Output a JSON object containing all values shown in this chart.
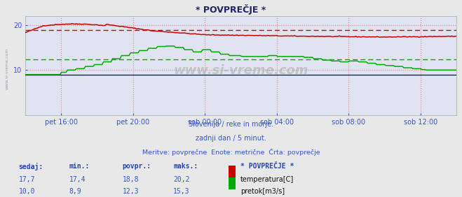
{
  "title": "* POVPREČJE *",
  "subtitle1": "Slovenija / reke in morje.",
  "subtitle2": "zadnji dan / 5 minut.",
  "subtitle3": "Meritve: povprečne  Enote: metrične  Črta: povprečje",
  "xtick_labels": [
    "pet 16:00",
    "pet 20:00",
    "sob 00:00",
    "sob 04:00",
    "sob 08:00",
    "sob 12:00"
  ],
  "xtick_hours": [
    2,
    6,
    10,
    14,
    18,
    22
  ],
  "ylim": [
    0,
    22
  ],
  "yticks": [
    10,
    20
  ],
  "temp_avg": 18.8,
  "flow_avg": 12.3,
  "fig_bg": "#e8e8e8",
  "plot_bg": "#e0e4f0",
  "vgrid_color": "#dd8888",
  "hgrid_color": "#dd8888",
  "temp_color": "#cc0000",
  "flow_color": "#00aa00",
  "height_color": "#0000bb",
  "temp_avg_color": "#cc0000",
  "flow_avg_color": "#00aa00",
  "header_color": "#2244bb",
  "value_color": "#3355cc",
  "sedaj_label": "sedaj:",
  "min_label": "min.:",
  "povpr_label": "povpr.:",
  "maks_label": "maks.:",
  "legend_title": "* POVPREČJE *",
  "temp_row": {
    "sedaj": "17,7",
    "min": "17,4",
    "povpr": "18,8",
    "maks": "20,2",
    "name": "temperatura[C]",
    "color": "#cc0000"
  },
  "flow_row": {
    "sedaj": "10,0",
    "min": "8,9",
    "povpr": "12,3",
    "maks": "15,3",
    "name": "pretok[m3/s]",
    "color": "#00aa00"
  },
  "watermark_side": "www.si-vreme.com",
  "watermark_center": "www.si-vreme.com"
}
